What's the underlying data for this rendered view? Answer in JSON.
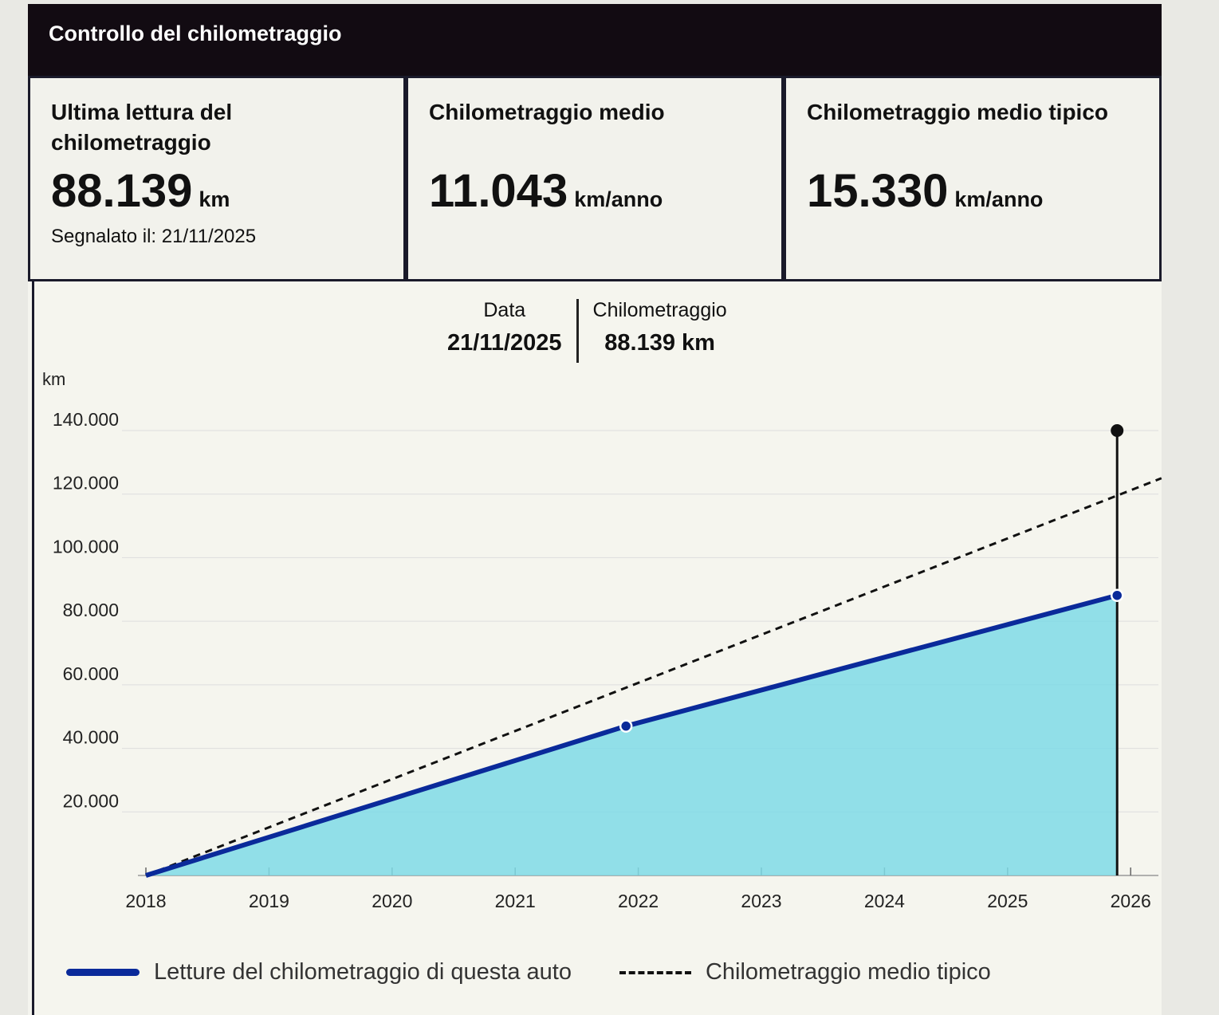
{
  "header": {
    "title": "Controllo del chilometraggio"
  },
  "cards": [
    {
      "title": "Ultima lettura del chilometraggio",
      "value": "88.139",
      "unit": "km",
      "sub": "Segnalato il: 21/11/2025"
    },
    {
      "title": "Chilometraggio medio",
      "value": "11.043",
      "unit": "km/anno"
    },
    {
      "title": "Chilometraggio medio tipico",
      "value": "15.330",
      "unit": "km/anno"
    }
  ],
  "tooltip": {
    "date_label": "Data",
    "date": "21/11/2025",
    "km_label": "Chilometraggio",
    "km": "88.139 km"
  },
  "chart_data": {
    "type": "line",
    "ylabel": "km",
    "xlim": [
      2018,
      2026.3
    ],
    "ylim": [
      0,
      140000
    ],
    "x_ticks": [
      "2018",
      "2019",
      "2020",
      "2021",
      "2022",
      "2023",
      "2024",
      "2025",
      "2026"
    ],
    "y_ticks": [
      "20.000",
      "40.000",
      "60.000",
      "80.000",
      "100.000",
      "120.000",
      "140.000"
    ],
    "series": [
      {
        "name": "Letture del chilometraggio di questa auto",
        "style": "solid-filled",
        "color": "#0a2a9a",
        "fill": "#7fdbe6",
        "x": [
          2018.0,
          2021.9,
          2025.89
        ],
        "y": [
          0,
          47000,
          88139
        ]
      },
      {
        "name": "Chilometraggio medio tipico",
        "style": "dashed",
        "color": "#111111",
        "x": [
          2018.0,
          2026.25
        ],
        "y": [
          0,
          125000
        ]
      }
    ],
    "marker_x": 2025.89,
    "grid": true,
    "legend": "bottom"
  }
}
